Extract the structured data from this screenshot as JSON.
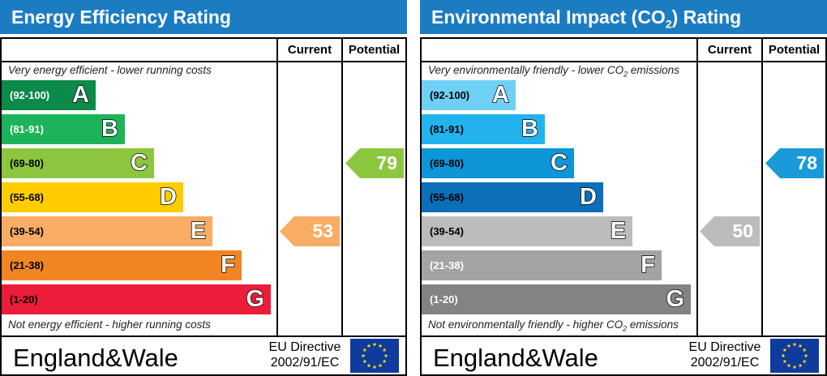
{
  "panels": [
    {
      "title": "Energy Efficiency Rating",
      "title_sub": "",
      "col_current": "Current",
      "col_potential": "Potential",
      "top_note": "Very energy efficient - lower running costs",
      "bottom_note": "Not energy efficient - higher running costs",
      "footer": "England&Wale",
      "directive_line1": "EU Directive",
      "directive_line2": "2002/91/EC",
      "bands": [
        {
          "range": "(92-100)",
          "letter": "A",
          "color": "#0b8a4a",
          "range_color": "#ffffff"
        },
        {
          "range": "(81-91)",
          "letter": "B",
          "color": "#1cb35a",
          "range_color": "#ffffff"
        },
        {
          "range": "(69-80)",
          "letter": "C",
          "color": "#8cc63f",
          "range_color": "#000000"
        },
        {
          "range": "(55-68)",
          "letter": "D",
          "color": "#ffcc00",
          "range_color": "#000000"
        },
        {
          "range": "(39-54)",
          "letter": "E",
          "color": "#f8ac64",
          "range_color": "#000000"
        },
        {
          "range": "(21-38)",
          "letter": "F",
          "color": "#f18423",
          "range_color": "#000000"
        },
        {
          "range": "(1-20)",
          "letter": "G",
          "color": "#ec1c3a",
          "range_color": "#000000"
        }
      ],
      "current": {
        "value": "53",
        "band": "E",
        "color": "#f8ac64"
      },
      "potential": {
        "value": "79",
        "band": "C",
        "color": "#8cc63f"
      }
    },
    {
      "title": "Environmental Impact (CO",
      "title_sub": "2",
      "title_end": ") Rating",
      "col_current": "Current",
      "col_potential": "Potential",
      "top_note": "Very environmentally friendly - lower CO",
      "top_note_sub": "2",
      "top_note_end": " emissions",
      "bottom_note": "Not environmentally friendly - higher CO",
      "bottom_note_sub": "2",
      "bottom_note_end": " emissions",
      "footer": "England&Wale",
      "directive_line1": "EU Directive",
      "directive_line2": "2002/91/EC",
      "bands": [
        {
          "range": "(92-100)",
          "letter": "A",
          "color": "#6fd0f6",
          "range_color": "#000000"
        },
        {
          "range": "(81-91)",
          "letter": "B",
          "color": "#22b3ee",
          "range_color": "#000000"
        },
        {
          "range": "(69-80)",
          "letter": "C",
          "color": "#0d96d8",
          "range_color": "#000000"
        },
        {
          "range": "(55-68)",
          "letter": "D",
          "color": "#0b6fb9",
          "range_color": "#000000"
        },
        {
          "range": "(39-54)",
          "letter": "E",
          "color": "#bcbcbc",
          "range_color": "#000000"
        },
        {
          "range": "(21-38)",
          "letter": "F",
          "color": "#a3a3a3",
          "range_color": "#ffffff"
        },
        {
          "range": "(1-20)",
          "letter": "G",
          "color": "#838383",
          "range_color": "#ffffff"
        }
      ],
      "current": {
        "value": "50",
        "band": "E",
        "color": "#bcbcbc"
      },
      "potential": {
        "value": "78",
        "band": "C",
        "color": "#1a9ad9"
      }
    }
  ],
  "chart_data": [
    {
      "type": "bar",
      "title": "Energy Efficiency Rating",
      "categories": [
        "A",
        "B",
        "C",
        "D",
        "E",
        "F",
        "G"
      ],
      "ranges": [
        "92-100",
        "81-91",
        "69-80",
        "55-68",
        "39-54",
        "21-38",
        "1-20"
      ],
      "current": 53,
      "potential": 79
    },
    {
      "type": "bar",
      "title": "Environmental Impact (CO2) Rating",
      "categories": [
        "A",
        "B",
        "C",
        "D",
        "E",
        "F",
        "G"
      ],
      "ranges": [
        "92-100",
        "81-91",
        "69-80",
        "55-68",
        "39-54",
        "21-38",
        "1-20"
      ],
      "current": 50,
      "potential": 78
    }
  ]
}
